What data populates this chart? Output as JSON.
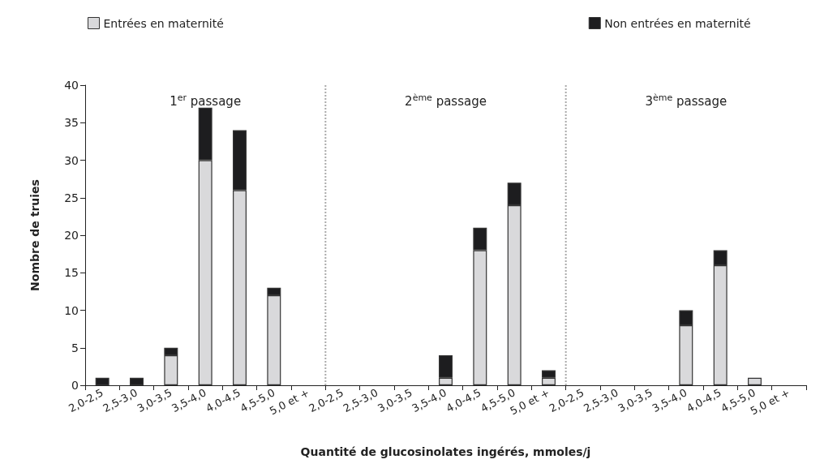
{
  "chart_data": {
    "type": "bar",
    "stacked": true,
    "xlabel": "Quantité de glucosinolates ingérés, mmoles/j",
    "ylabel": "Nombre de truies",
    "categories": [
      "2,0-2,5",
      "2,5-3,0",
      "3,0-3,5",
      "3,5-4,0",
      "4,0-4,5",
      "4,5-5,0",
      "5,0 et +",
      "2,0-2,5",
      "2,5-3,0",
      "3,0-3,5",
      "3,5-4,0",
      "4,0-4,5",
      "4,5-5,0",
      "5,0 et +",
      "2,0-2,5",
      "2,5-3,0",
      "3,0-3,5",
      "3,5-4,0",
      "4,0-4,5",
      "4,5-5,0",
      "5,0 et +"
    ],
    "series": [
      {
        "name": "Entrées en maternité",
        "color": "#d9d9db",
        "values": [
          0,
          0,
          4,
          30,
          26,
          12,
          0,
          0,
          0,
          0,
          1,
          18,
          24,
          1,
          0,
          0,
          0,
          8,
          16,
          1,
          0
        ]
      },
      {
        "name": "Non entrées en maternité",
        "color": "#1d1d1f",
        "values": [
          1,
          1,
          1,
          7,
          8,
          1,
          0,
          0,
          0,
          0,
          3,
          3,
          3,
          1,
          0,
          0,
          0,
          2,
          2,
          0,
          0
        ]
      }
    ],
    "annotations": [
      "1$^{er}$ passage",
      "2$^{ème}$ passage",
      "3$^{ème}$ passage"
    ],
    "ylim": [
      0,
      40
    ],
    "yticks": [
      0,
      5,
      10,
      15,
      20,
      25,
      30,
      35,
      40
    ],
    "grid": false,
    "legend": "top"
  }
}
